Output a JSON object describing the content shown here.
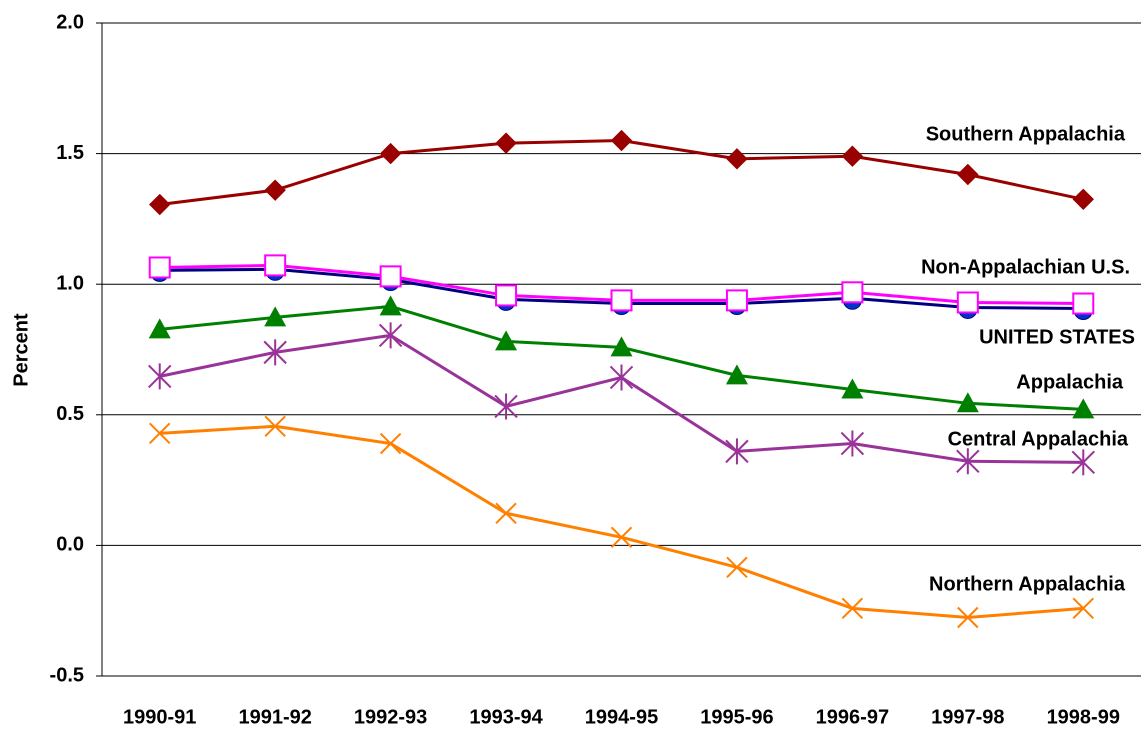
{
  "chart_data": {
    "type": "line",
    "ylabel": "Percent",
    "categories": [
      "1990-91",
      "1991-92",
      "1992-93",
      "1993-94",
      "1994-95",
      "1995-96",
      "1996-97",
      "1997-98",
      "1998-99"
    ],
    "ylim": [
      -0.5,
      2.0
    ],
    "yticks": [
      {
        "value": 2.0,
        "label": "2.0"
      },
      {
        "value": 1.5,
        "label": "1.5"
      },
      {
        "value": 1.0,
        "label": "1.0"
      },
      {
        "value": 0.5,
        "label": "0.5"
      },
      {
        "value": 0,
        "label": "0.0"
      },
      {
        "value": -0.5,
        "label": "-0.5"
      }
    ],
    "grid": true,
    "series": [
      {
        "name": "Southern Appalachia",
        "color": "#990000",
        "marker": "diamond",
        "values": [
          1.305,
          1.36,
          1.5,
          1.54,
          1.55,
          1.48,
          1.49,
          1.42,
          1.325
        ]
      },
      {
        "name": "UNITED STATES",
        "color": "#000080",
        "marker": "circle",
        "values": [
          1.053,
          1.057,
          1.018,
          0.942,
          0.926,
          0.926,
          0.946,
          0.911,
          0.907
        ]
      },
      {
        "name": "Non-Appalachian U.S.",
        "color": "#ff00ff",
        "marker": "square",
        "values": [
          1.064,
          1.072,
          1.03,
          0.957,
          0.938,
          0.938,
          0.969,
          0.93,
          0.926
        ]
      },
      {
        "name": "Appalachia",
        "color": "#008000",
        "marker": "triangle",
        "values": [
          0.827,
          0.873,
          0.915,
          0.781,
          0.758,
          0.651,
          0.597,
          0.544,
          0.521
        ]
      },
      {
        "name": "Central Appalachia",
        "color": "#993399",
        "marker": "star",
        "values": [
          0.647,
          0.739,
          0.804,
          0.532,
          0.643,
          0.36,
          0.39,
          0.322,
          0.318
        ]
      },
      {
        "name": "Northern Appalachia",
        "color": "#ff8000",
        "marker": "x",
        "values": [
          0.429,
          0.456,
          0.39,
          0.123,
          0.031,
          -0.084,
          -0.241,
          -0.276,
          -0.241
        ]
      }
    ]
  }
}
